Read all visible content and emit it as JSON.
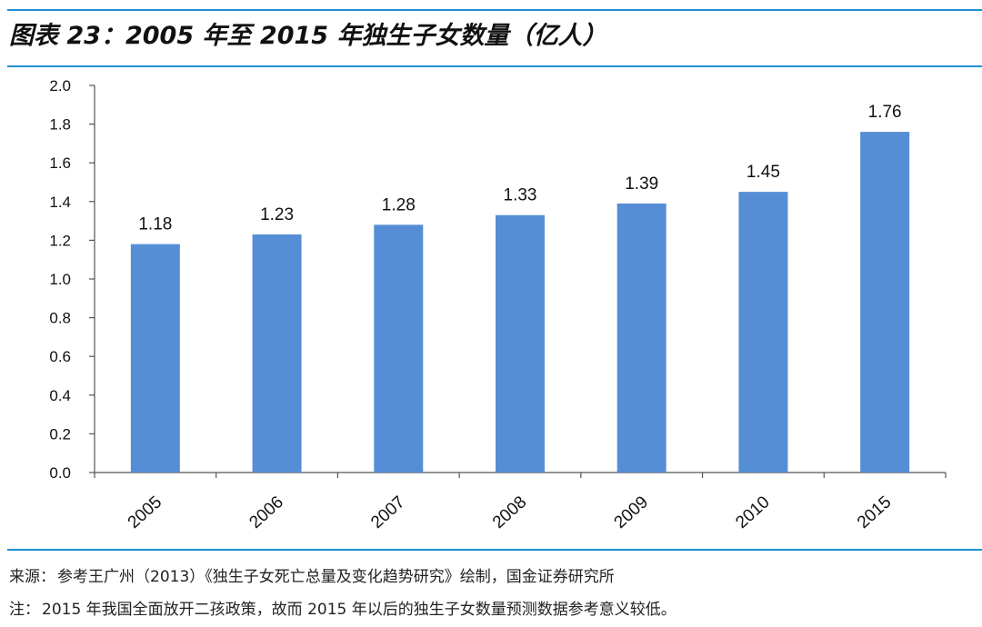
{
  "header": {
    "title": "图表 23：2005 年至 2015 年独生子女数量（亿人）"
  },
  "chart_data": {
    "type": "bar",
    "title": "图表 23：2005 年至 2015 年独生子女数量（亿人）",
    "xlabel": "",
    "ylabel": "",
    "categories": [
      "2005",
      "2006",
      "2007",
      "2008",
      "2009",
      "2010",
      "2015"
    ],
    "values": [
      1.18,
      1.23,
      1.28,
      1.33,
      1.39,
      1.45,
      1.76
    ],
    "value_labels": [
      "1.18",
      "1.23",
      "1.28",
      "1.33",
      "1.39",
      "1.45",
      "1.76"
    ],
    "ylim": [
      0,
      2.0
    ],
    "y_ticks": [
      "0.0",
      "0.2",
      "0.4",
      "0.6",
      "0.8",
      "1.0",
      "1.2",
      "1.4",
      "1.6",
      "1.8",
      "2.0"
    ],
    "grid": false,
    "legend": "none",
    "bar_color": "#558ed5"
  },
  "footer": {
    "source_label": "来源：",
    "source_text": "参考王广州（2013）《独生子女死亡总量及变化趋势研究》绘制，国金证券研究所",
    "note_label": "注：",
    "note_text": "2015 年我国全面放开二孩政策，故而 2015 年以后的独生子女数量预测数据参考意义较低。"
  },
  "colors": {
    "accent_rule": "#1e90d6",
    "bar": "#558ed5",
    "axis": "#555555"
  }
}
